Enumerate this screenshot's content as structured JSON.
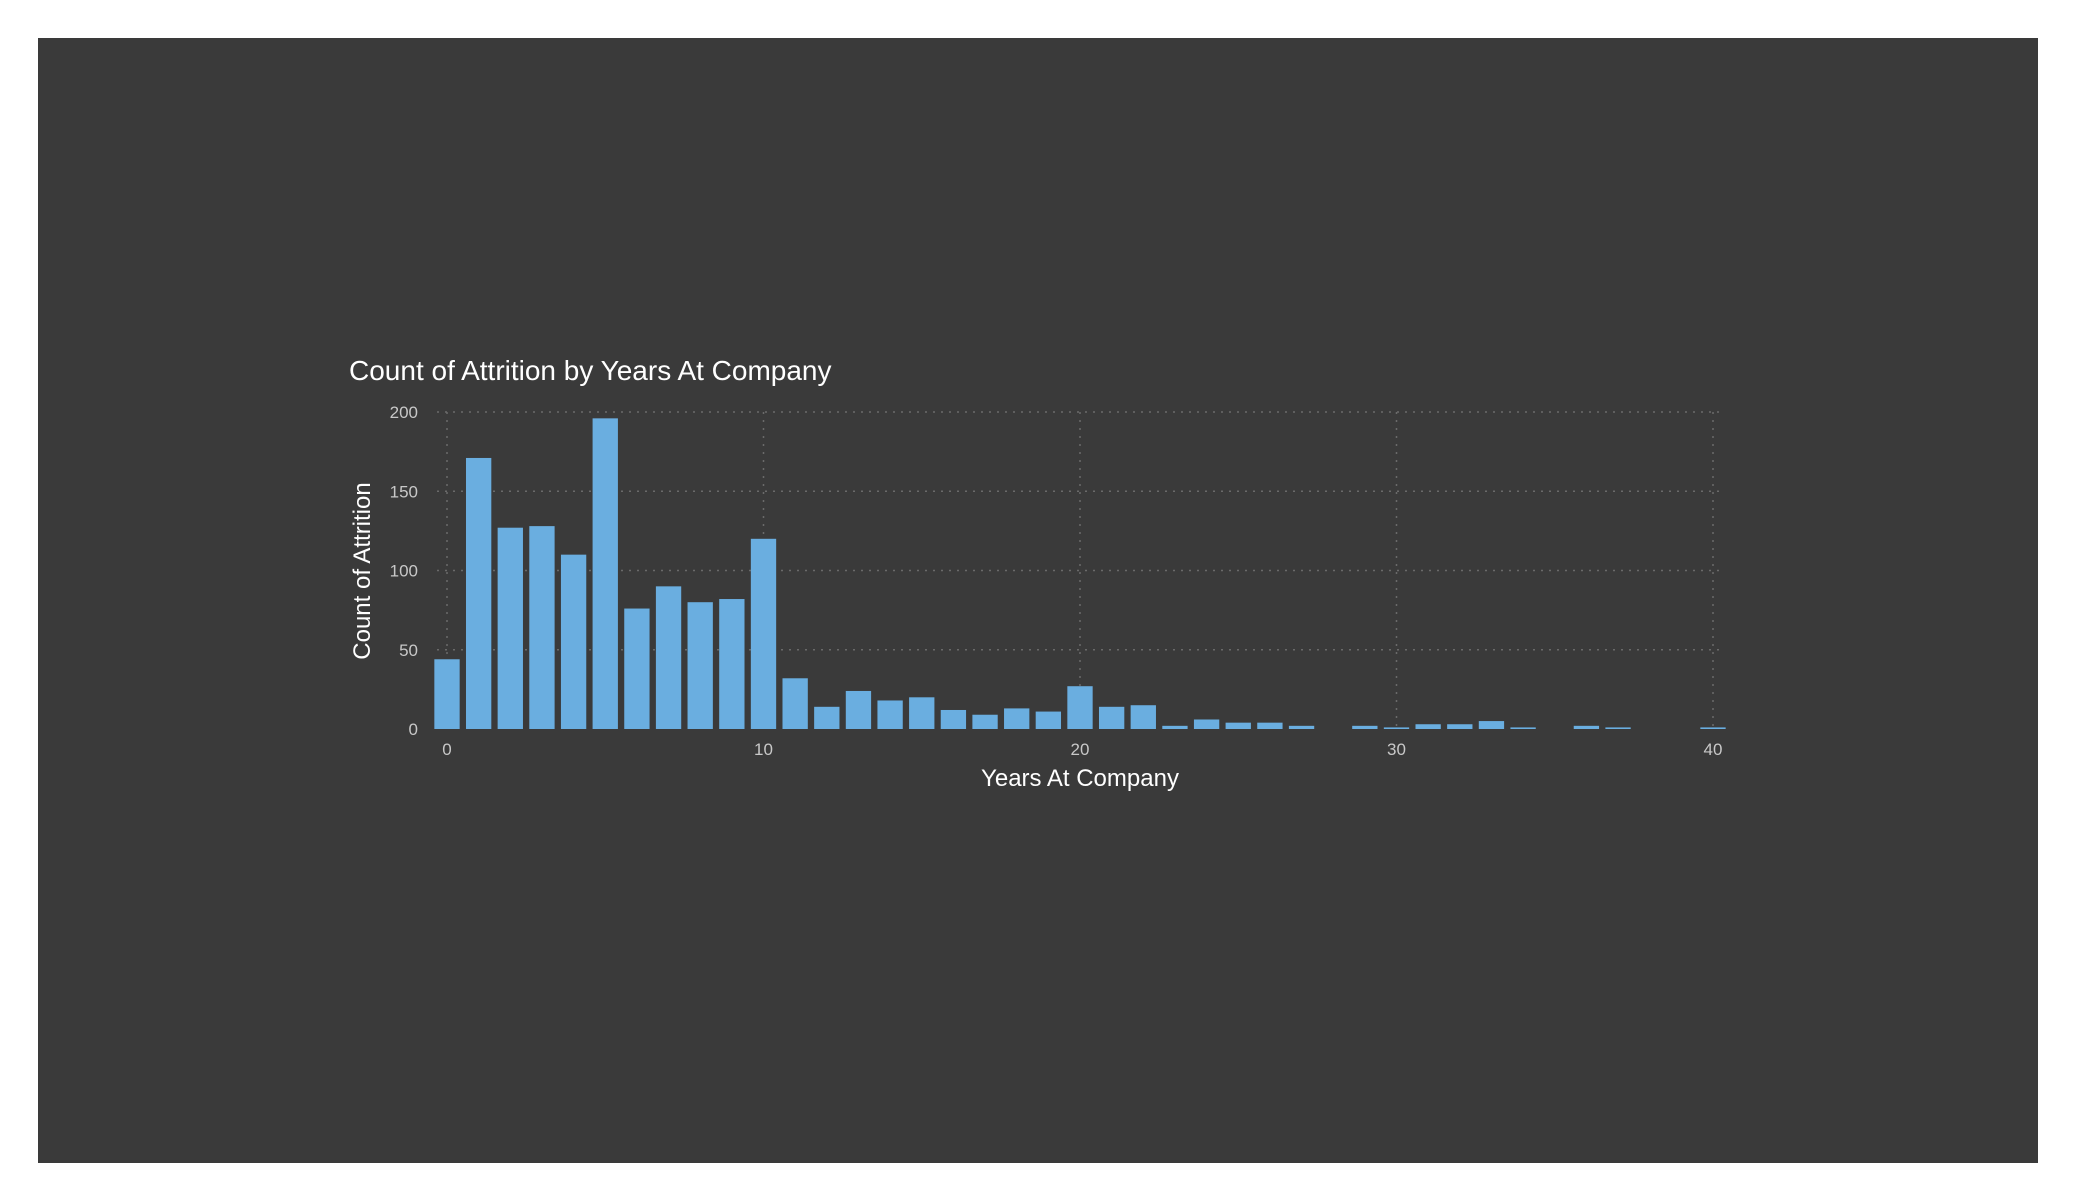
{
  "chart_data": {
    "type": "bar",
    "title": "Count of Attrition by Years At Company",
    "xlabel": "Years At Company",
    "ylabel": "Count of Attrition",
    "xlim": [
      0,
      40
    ],
    "ylim": [
      0,
      200
    ],
    "xticks": [
      0,
      10,
      20,
      30,
      40
    ],
    "yticks": [
      0,
      50,
      100,
      150,
      200
    ],
    "grid": true,
    "bar_color": "#6aaee0",
    "background_color": "#3a3a3a",
    "x": [
      0,
      1,
      2,
      3,
      4,
      5,
      6,
      7,
      8,
      9,
      10,
      11,
      12,
      13,
      14,
      15,
      16,
      17,
      18,
      19,
      20,
      21,
      22,
      23,
      24,
      25,
      26,
      27,
      28,
      29,
      30,
      31,
      32,
      33,
      34,
      35,
      36,
      37,
      38,
      39,
      40
    ],
    "values": [
      44,
      171,
      127,
      128,
      110,
      196,
      76,
      90,
      80,
      82,
      120,
      32,
      14,
      24,
      18,
      20,
      12,
      9,
      13,
      11,
      27,
      14,
      15,
      2,
      6,
      4,
      4,
      2,
      0,
      2,
      1,
      3,
      3,
      5,
      1,
      0,
      2,
      1,
      0,
      0,
      1
    ]
  }
}
